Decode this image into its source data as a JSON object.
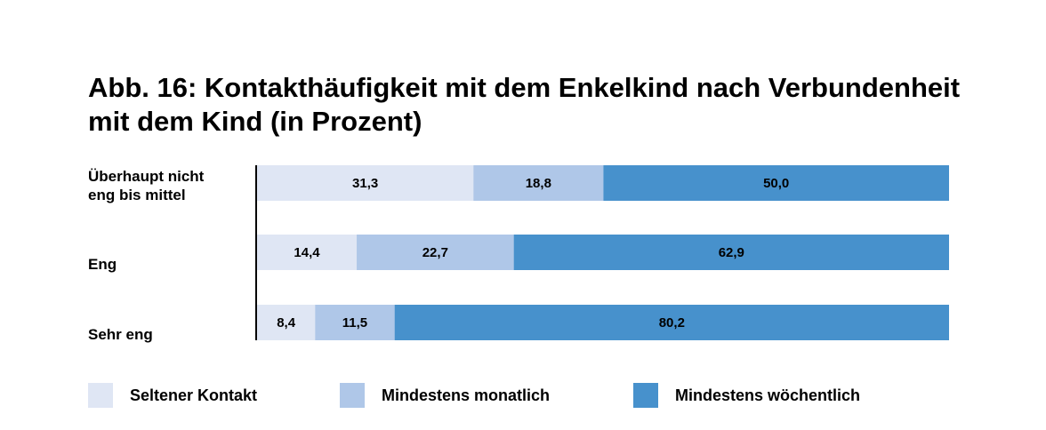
{
  "chart_data": {
    "type": "bar",
    "orientation": "horizontal",
    "stacked": true,
    "title": "Abb. 16: Kontakthäufigkeit mit dem Enkelkind nach Verbundenheit mit dem Kind (in Prozent)",
    "title_lines": [
      "Abb. 16: Kontakthäufigkeit mit dem Enkelkind nach Verbundenheit",
      "mit dem Kind (in Prozent)"
    ],
    "categories": [
      "Überhaupt nicht eng bis mittel",
      "Eng",
      "Sehr eng"
    ],
    "category_lines": [
      [
        "Überhaupt nicht",
        "eng bis mittel"
      ],
      [
        "Eng"
      ],
      [
        "Sehr eng"
      ]
    ],
    "series": [
      {
        "name": "Seltener Kontakt",
        "values": [
          31.3,
          14.4,
          8.4
        ],
        "labels": [
          "31,3",
          "14,4",
          "8,4"
        ],
        "color": "#dfe6f4"
      },
      {
        "name": "Mindestens monatlich",
        "values": [
          18.8,
          22.7,
          11.5
        ],
        "labels": [
          "18,8",
          "22,7",
          "11,5"
        ],
        "color": "#afc7e8"
      },
      {
        "name": "Mindestens wöchentlich",
        "values": [
          50.0,
          62.9,
          80.2
        ],
        "labels": [
          "50,0",
          "62,9",
          "80,2"
        ],
        "color": "#4791cc"
      }
    ],
    "xlim": [
      0,
      100
    ],
    "legend": "bottom",
    "grid": false
  }
}
